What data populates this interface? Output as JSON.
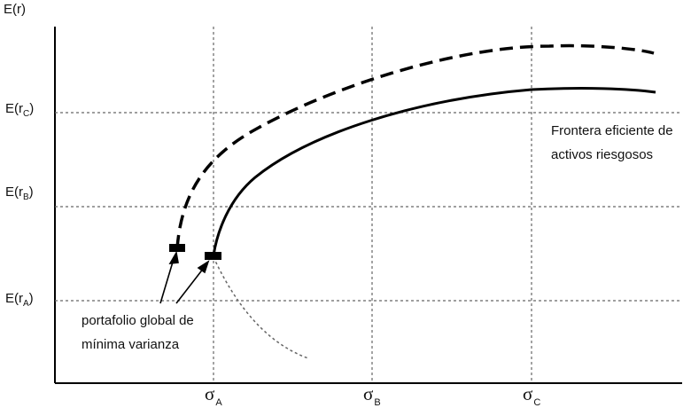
{
  "y_axis_label": "E(r)",
  "y_ticks": [
    {
      "prefix": "E(r",
      "sub": "C",
      "suffix": ")"
    },
    {
      "prefix": "E(r",
      "sub": "B",
      "suffix": ")"
    },
    {
      "prefix": "E(r",
      "sub": "A",
      "suffix": ")"
    }
  ],
  "x_ticks": [
    {
      "symbol": "σ",
      "sub": "A"
    },
    {
      "symbol": "σ",
      "sub": "B"
    },
    {
      "symbol": "σ",
      "sub": "C"
    }
  ],
  "frontier_label": [
    "Frontera eficiente de",
    "activos riesgosos"
  ],
  "gmv_label": [
    "portafolio global de",
    "mínima varianza"
  ]
}
